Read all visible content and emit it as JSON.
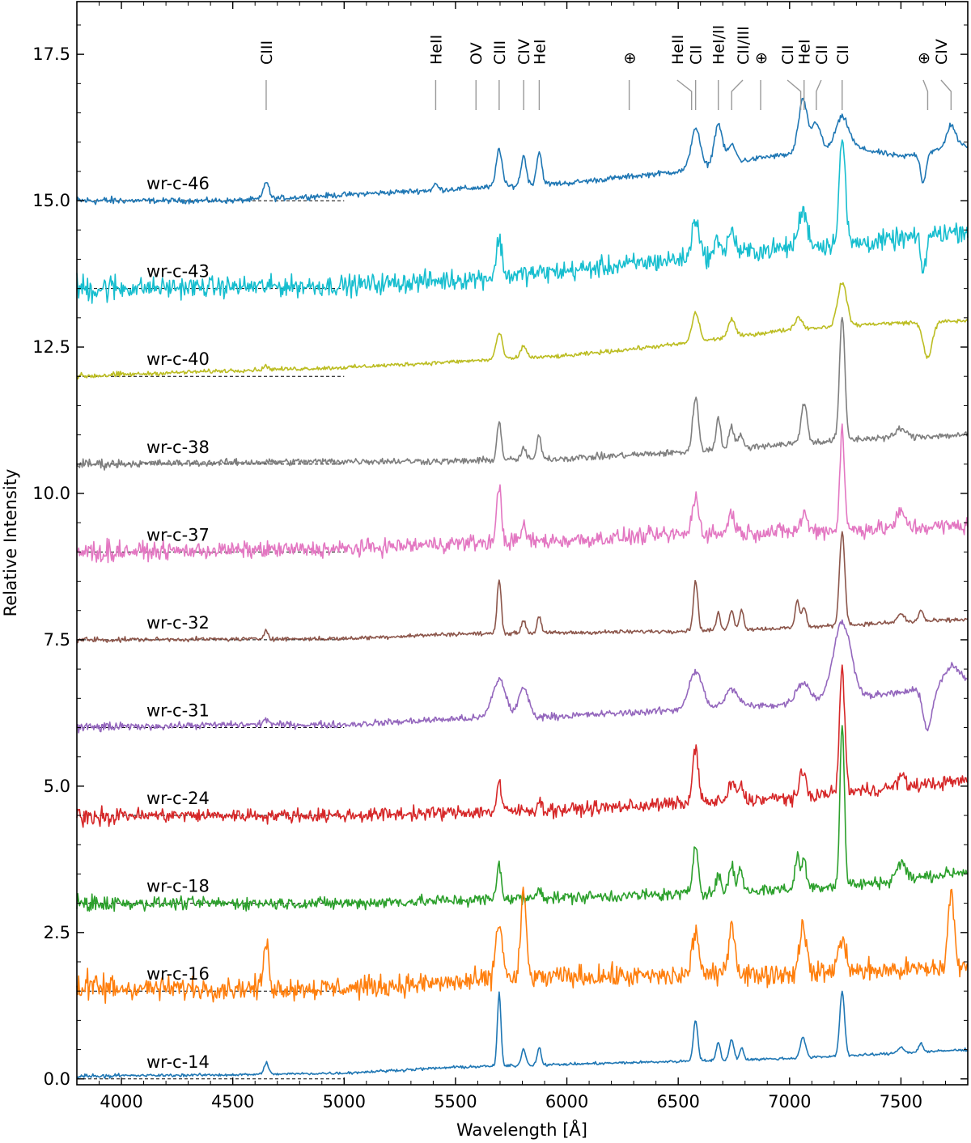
{
  "chart_data": {
    "type": "line",
    "xlabel": "Wavelength [Å]",
    "ylabel": "Relative Intensity",
    "xlim": [
      3800,
      7800
    ],
    "ylim": [
      -0.1,
      18.4
    ],
    "xticks": [
      4000,
      4500,
      5000,
      5500,
      6000,
      6500,
      7000,
      7500
    ],
    "xtick_labels": [
      "4000",
      "4500",
      "5000",
      "5500",
      "6000",
      "6500",
      "7000",
      "7500"
    ],
    "yticks": [
      0.0,
      2.5,
      5.0,
      7.5,
      10.0,
      12.5,
      15.0,
      17.5
    ],
    "ytick_labels": [
      "0.0",
      "2.5",
      "5.0",
      "7.5",
      "10.0",
      "12.5",
      "15.0",
      "17.5"
    ],
    "grid": false,
    "line_identifications": [
      {
        "label": "CIII",
        "tick_x": 4650,
        "label_x": 4650
      },
      {
        "label": "HeII",
        "tick_x": 5411,
        "label_x": 5411
      },
      {
        "label": "OV",
        "tick_x": 5592,
        "label_x": 5592
      },
      {
        "label": "CIII",
        "tick_x": 5696,
        "label_x": 5696
      },
      {
        "label": "CIV",
        "tick_x": 5806,
        "label_x": 5806
      },
      {
        "label": "HeI",
        "tick_x": 5876,
        "label_x": 5876
      },
      {
        "label": "⊕",
        "tick_x": 6280,
        "label_x": 6280
      },
      {
        "label": "HeII",
        "tick_x": 6560,
        "label_x": 6495
      },
      {
        "label": "CII",
        "tick_x": 6578,
        "label_x": 6578
      },
      {
        "label": "HeI/II",
        "tick_x": 6680,
        "label_x": 6680
      },
      {
        "label": "CII/III",
        "tick_x": 6740,
        "label_x": 6790
      },
      {
        "label": "⊕",
        "tick_x": 6870,
        "label_x": 6870
      },
      {
        "label": "CII",
        "tick_x": 7050,
        "label_x": 6990
      },
      {
        "label": "HeI",
        "tick_x": 7065,
        "label_x": 7065
      },
      {
        "label": "CII",
        "tick_x": 7120,
        "label_x": 7142
      },
      {
        "label": "CII",
        "tick_x": 7236,
        "label_x": 7236
      },
      {
        "label": "⊕",
        "tick_x": 7620,
        "label_x": 7600
      },
      {
        "label": "CIV",
        "tick_x": 7725,
        "label_x": 7680
      }
    ],
    "series": [
      {
        "name": "wr-c-46",
        "color": "#1f77b4",
        "offset": 15.0,
        "noise": 0.04,
        "continuum": [
          [
            3800,
            15.0
          ],
          [
            4500,
            15.0
          ],
          [
            5000,
            15.1
          ],
          [
            5500,
            15.2
          ],
          [
            6000,
            15.3
          ],
          [
            6500,
            15.5
          ],
          [
            6900,
            15.75
          ],
          [
            7300,
            15.9
          ],
          [
            7500,
            15.75
          ],
          [
            7800,
            15.95
          ]
        ],
        "lines": [
          [
            4650,
            0.3,
            12
          ],
          [
            5411,
            0.1,
            10
          ],
          [
            5696,
            0.65,
            13
          ],
          [
            5806,
            0.5,
            12
          ],
          [
            5876,
            0.55,
            12
          ],
          [
            6578,
            0.7,
            20
          ],
          [
            6680,
            0.7,
            18
          ],
          [
            6740,
            0.3,
            18
          ],
          [
            7060,
            0.9,
            20
          ],
          [
            7120,
            0.5,
            20
          ],
          [
            7236,
            0.55,
            30
          ],
          [
            7725,
            0.4,
            20
          ]
        ],
        "dips": [
          [
            7600,
            0.5,
            12
          ]
        ]
      },
      {
        "name": "wr-c-43",
        "color": "#17becf",
        "offset": 13.5,
        "noise": 0.15,
        "continuum": [
          [
            3800,
            13.5
          ],
          [
            5000,
            13.55
          ],
          [
            5500,
            13.65
          ],
          [
            6000,
            13.8
          ],
          [
            6500,
            14.0
          ],
          [
            7000,
            14.2
          ],
          [
            7400,
            14.3
          ],
          [
            7800,
            14.5
          ]
        ],
        "lines": [
          [
            5696,
            0.65,
            12
          ],
          [
            6578,
            0.7,
            15
          ],
          [
            6680,
            0.3,
            12
          ],
          [
            6740,
            0.4,
            15
          ],
          [
            7060,
            0.6,
            20
          ],
          [
            7236,
            1.8,
            14
          ]
        ],
        "dips": [
          [
            7600,
            0.6,
            12
          ]
        ]
      },
      {
        "name": "wr-c-40",
        "color": "#bcbd22",
        "offset": 12.0,
        "noise": 0.03,
        "continuum": [
          [
            3800,
            12.0
          ],
          [
            4500,
            12.1
          ],
          [
            5000,
            12.15
          ],
          [
            5500,
            12.25
          ],
          [
            6000,
            12.35
          ],
          [
            6500,
            12.55
          ],
          [
            7000,
            12.8
          ],
          [
            7400,
            12.9
          ],
          [
            7800,
            12.95
          ]
        ],
        "lines": [
          [
            4650,
            0.06,
            12
          ],
          [
            5696,
            0.45,
            14
          ],
          [
            5806,
            0.2,
            14
          ],
          [
            6578,
            0.5,
            16
          ],
          [
            6740,
            0.3,
            16
          ],
          [
            7040,
            0.2,
            16
          ],
          [
            7236,
            0.75,
            20
          ]
        ],
        "dips": [
          [
            7620,
            0.6,
            20
          ]
        ]
      },
      {
        "name": "wr-c-38",
        "color": "#7f7f7f",
        "offset": 10.5,
        "noise": 0.05,
        "continuum": [
          [
            3800,
            10.5
          ],
          [
            5000,
            10.55
          ],
          [
            5500,
            10.55
          ],
          [
            6000,
            10.6
          ],
          [
            6500,
            10.7
          ],
          [
            7000,
            10.85
          ],
          [
            7400,
            10.95
          ],
          [
            7800,
            11.0
          ]
        ],
        "lines": [
          [
            5696,
            0.65,
            10
          ],
          [
            5806,
            0.2,
            10
          ],
          [
            5876,
            0.4,
            10
          ],
          [
            6578,
            0.9,
            13
          ],
          [
            6680,
            0.55,
            10
          ],
          [
            6740,
            0.35,
            13
          ],
          [
            6780,
            0.2,
            10
          ],
          [
            7065,
            0.7,
            13
          ],
          [
            7236,
            2.1,
            12
          ],
          [
            7500,
            0.15,
            20
          ]
        ],
        "dips": []
      },
      {
        "name": "wr-c-37",
        "color": "#e377c2",
        "offset": 9.0,
        "noise": 0.12,
        "continuum": [
          [
            3800,
            9.0
          ],
          [
            5000,
            9.05
          ],
          [
            5500,
            9.15
          ],
          [
            6000,
            9.2
          ],
          [
            6500,
            9.3
          ],
          [
            7000,
            9.35
          ],
          [
            7400,
            9.4
          ],
          [
            7800,
            9.45
          ]
        ],
        "lines": [
          [
            5696,
            1.0,
            10
          ],
          [
            5806,
            0.25,
            12
          ],
          [
            6578,
            0.65,
            14
          ],
          [
            6740,
            0.35,
            14
          ],
          [
            7065,
            0.3,
            14
          ],
          [
            7236,
            1.75,
            10
          ],
          [
            7500,
            0.25,
            20
          ]
        ],
        "dips": []
      },
      {
        "name": "wr-c-32",
        "color": "#8c564b",
        "offset": 7.5,
        "noise": 0.03,
        "continuum": [
          [
            3800,
            7.5
          ],
          [
            5000,
            7.52
          ],
          [
            5500,
            7.6
          ],
          [
            6000,
            7.62
          ],
          [
            6500,
            7.65
          ],
          [
            7000,
            7.7
          ],
          [
            7400,
            7.78
          ],
          [
            7800,
            7.85
          ]
        ],
        "lines": [
          [
            4650,
            0.15,
            10
          ],
          [
            5696,
            0.95,
            9
          ],
          [
            5806,
            0.22,
            10
          ],
          [
            5876,
            0.3,
            9
          ],
          [
            6578,
            0.85,
            10
          ],
          [
            6680,
            0.28,
            9
          ],
          [
            6740,
            0.35,
            10
          ],
          [
            6785,
            0.35,
            9
          ],
          [
            7035,
            0.45,
            10
          ],
          [
            7065,
            0.35,
            10
          ],
          [
            7236,
            1.6,
            12
          ],
          [
            7500,
            0.15,
            15
          ],
          [
            7590,
            0.2,
            10
          ]
        ],
        "dips": []
      },
      {
        "name": "wr-c-31",
        "color": "#9467bd",
        "offset": 6.0,
        "noise": 0.05,
        "continuum": [
          [
            3800,
            6.0
          ],
          [
            4500,
            6.05
          ],
          [
            5000,
            6.05
          ],
          [
            5500,
            6.15
          ],
          [
            6000,
            6.2
          ],
          [
            6500,
            6.3
          ],
          [
            7000,
            6.4
          ],
          [
            7500,
            6.6
          ],
          [
            7800,
            6.8
          ]
        ],
        "lines": [
          [
            4650,
            0.1,
            12
          ],
          [
            5696,
            0.65,
            30
          ],
          [
            5806,
            0.5,
            22
          ],
          [
            6578,
            0.65,
            30
          ],
          [
            6740,
            0.3,
            30
          ],
          [
            7060,
            0.35,
            30
          ],
          [
            7236,
            1.3,
            40
          ],
          [
            7730,
            0.3,
            30
          ]
        ],
        "dips": [
          [
            7620,
            0.7,
            20
          ]
        ]
      },
      {
        "name": "wr-c-24",
        "color": "#d62728",
        "offset": 4.5,
        "noise": 0.1,
        "continuum": [
          [
            3800,
            4.5
          ],
          [
            5000,
            4.5
          ],
          [
            5500,
            4.55
          ],
          [
            6000,
            4.6
          ],
          [
            6500,
            4.7
          ],
          [
            7000,
            4.8
          ],
          [
            7400,
            4.95
          ],
          [
            7800,
            5.1
          ]
        ],
        "lines": [
          [
            5696,
            0.5,
            10
          ],
          [
            5876,
            0.15,
            10
          ],
          [
            6578,
            1.0,
            12
          ],
          [
            6740,
            0.3,
            14
          ],
          [
            6780,
            0.25,
            12
          ],
          [
            7060,
            0.4,
            14
          ],
          [
            7236,
            2.1,
            12
          ],
          [
            7500,
            0.2,
            15
          ]
        ],
        "dips": []
      },
      {
        "name": "wr-c-18",
        "color": "#2ca02c",
        "offset": 3.0,
        "noise": 0.09,
        "continuum": [
          [
            3800,
            3.0
          ],
          [
            5000,
            3.0
          ],
          [
            5500,
            3.05
          ],
          [
            6000,
            3.1
          ],
          [
            6500,
            3.15
          ],
          [
            7000,
            3.25
          ],
          [
            7400,
            3.35
          ],
          [
            7800,
            3.55
          ]
        ],
        "lines": [
          [
            5696,
            0.6,
            10
          ],
          [
            5876,
            0.2,
            10
          ],
          [
            6578,
            0.85,
            12
          ],
          [
            6680,
            0.3,
            10
          ],
          [
            6740,
            0.45,
            12
          ],
          [
            6780,
            0.4,
            10
          ],
          [
            7035,
            0.55,
            10
          ],
          [
            7065,
            0.5,
            10
          ],
          [
            7236,
            2.75,
            10
          ],
          [
            7500,
            0.3,
            20
          ]
        ],
        "dips": []
      },
      {
        "name": "wr-c-16",
        "color": "#ff7f0e",
        "offset": 1.5,
        "noise": 0.16,
        "continuum": [
          [
            3800,
            1.55
          ],
          [
            5000,
            1.55
          ],
          [
            5500,
            1.65
          ],
          [
            6000,
            1.75
          ],
          [
            6500,
            1.75
          ],
          [
            7000,
            1.8
          ],
          [
            7400,
            1.85
          ],
          [
            7800,
            1.9
          ]
        ],
        "lines": [
          [
            4650,
            0.75,
            12
          ],
          [
            5696,
            0.95,
            16
          ],
          [
            5806,
            1.5,
            12
          ],
          [
            6578,
            0.75,
            16
          ],
          [
            6740,
            0.85,
            16
          ],
          [
            7060,
            0.9,
            14
          ],
          [
            7236,
            0.5,
            20
          ],
          [
            7725,
            1.25,
            14
          ]
        ],
        "dips": []
      },
      {
        "name": "wr-c-14",
        "color": "#1f77b4",
        "offset": 0.0,
        "noise": 0.02,
        "continuum": [
          [
            3800,
            0.05
          ],
          [
            4500,
            0.07
          ],
          [
            5000,
            0.1
          ],
          [
            5500,
            0.2
          ],
          [
            6000,
            0.25
          ],
          [
            6500,
            0.3
          ],
          [
            7000,
            0.35
          ],
          [
            7400,
            0.42
          ],
          [
            7800,
            0.5
          ]
        ],
        "lines": [
          [
            4650,
            0.2,
            10
          ],
          [
            5696,
            1.25,
            8
          ],
          [
            5806,
            0.28,
            10
          ],
          [
            5876,
            0.3,
            9
          ],
          [
            6578,
            0.7,
            10
          ],
          [
            6680,
            0.3,
            9
          ],
          [
            6740,
            0.35,
            10
          ],
          [
            6785,
            0.2,
            9
          ],
          [
            7060,
            0.35,
            12
          ],
          [
            7236,
            1.1,
            11
          ],
          [
            7500,
            0.1,
            15
          ],
          [
            7590,
            0.15,
            10
          ]
        ],
        "dips": []
      }
    ]
  }
}
